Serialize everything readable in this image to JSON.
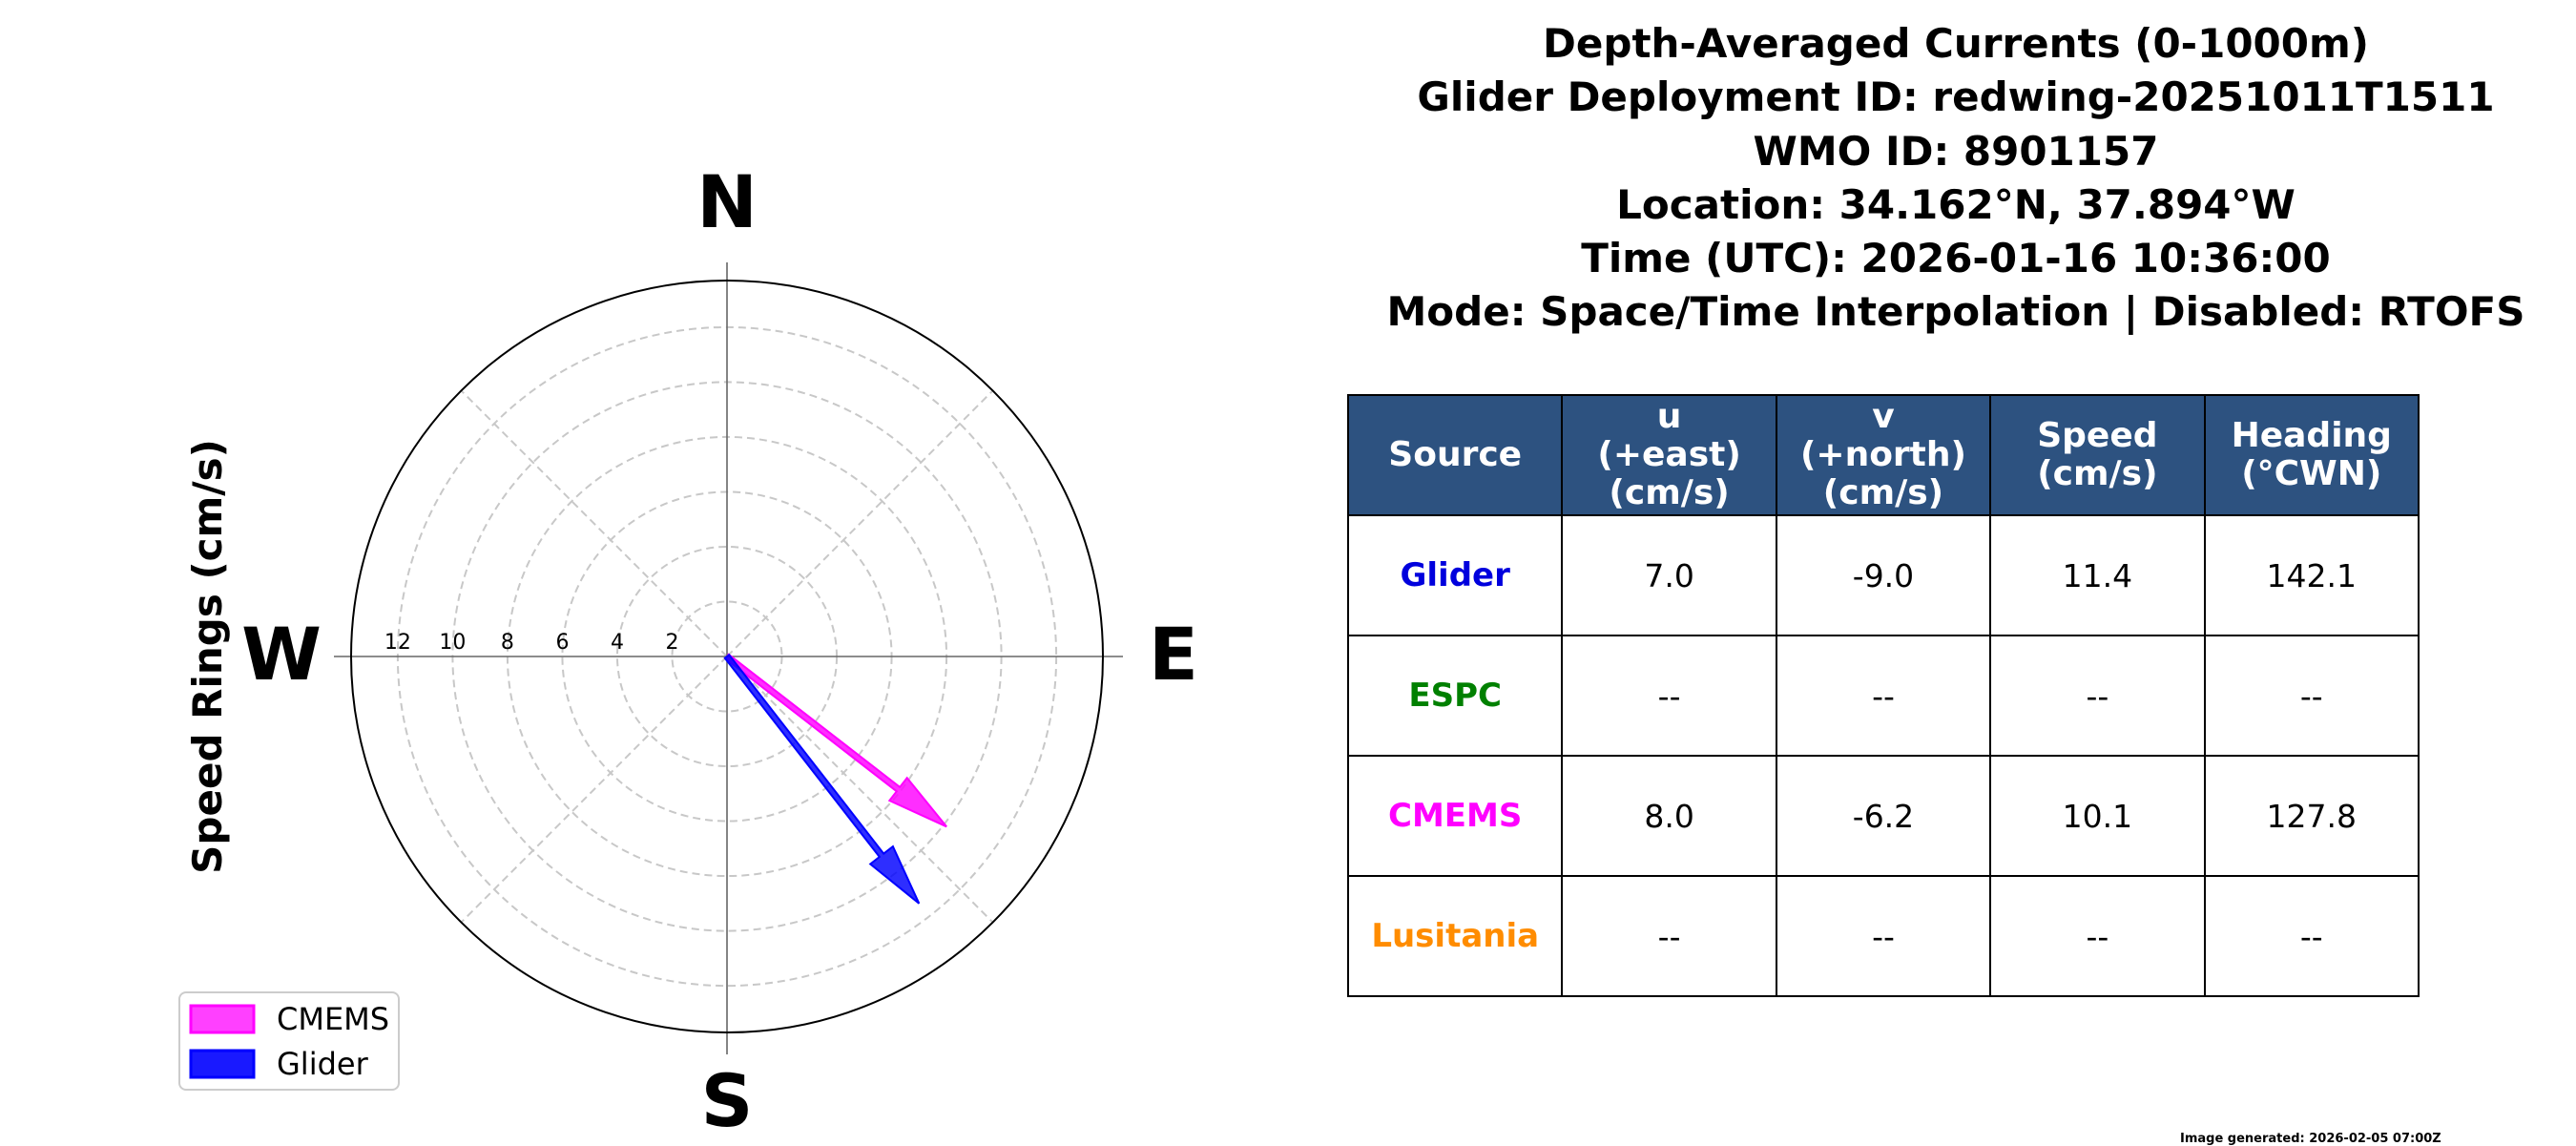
{
  "title_lines": [
    "Depth-Averaged Currents (0-1000m)",
    "Glider Deployment ID: redwing-20251011T1511",
    "WMO ID: 8901157",
    "Location: 34.162°N, 37.894°W",
    "Time (UTC): 2026-01-16 10:36:00",
    "Mode: Space/Time Interpolation | Disabled: RTOFS"
  ],
  "chart_data": {
    "type": "polar",
    "ylabel": "Speed Rings (cm/s)",
    "compass": {
      "north": "N",
      "south": "S",
      "east": "E",
      "west": "W"
    },
    "rmax": 13.7,
    "ring_values": [
      2,
      4,
      6,
      8,
      10,
      12
    ],
    "ring_labels": [
      "2",
      "4",
      "6",
      "8",
      "10",
      "12"
    ],
    "grid": true,
    "legend_position": "lower-left",
    "series": [
      {
        "name": "CMEMS",
        "u": 8.0,
        "v": -6.2,
        "color": "#ff00ff"
      },
      {
        "name": "Glider",
        "u": 7.0,
        "v": -9.0,
        "color": "#0000ff"
      }
    ]
  },
  "table": {
    "headers": [
      "Source",
      "u\n(+east)\n(cm/s)",
      "v\n(+north)\n(cm/s)",
      "Speed\n(cm/s)",
      "Heading\n(°CWN)"
    ],
    "rows": [
      {
        "source": "Glider",
        "color": "#0000dd",
        "cells": [
          "7.0",
          "-9.0",
          "11.4",
          "142.1"
        ]
      },
      {
        "source": "ESPC",
        "color": "#008000",
        "cells": [
          "--",
          "--",
          "--",
          "--"
        ]
      },
      {
        "source": "CMEMS",
        "color": "#ff00ff",
        "cells": [
          "8.0",
          "-6.2",
          "10.1",
          "127.8"
        ]
      },
      {
        "source": "Lusitania",
        "color": "#ff8c00",
        "cells": [
          "--",
          "--",
          "--",
          "--"
        ]
      }
    ]
  },
  "footer": "Image generated: 2026-02-05 07:00Z"
}
